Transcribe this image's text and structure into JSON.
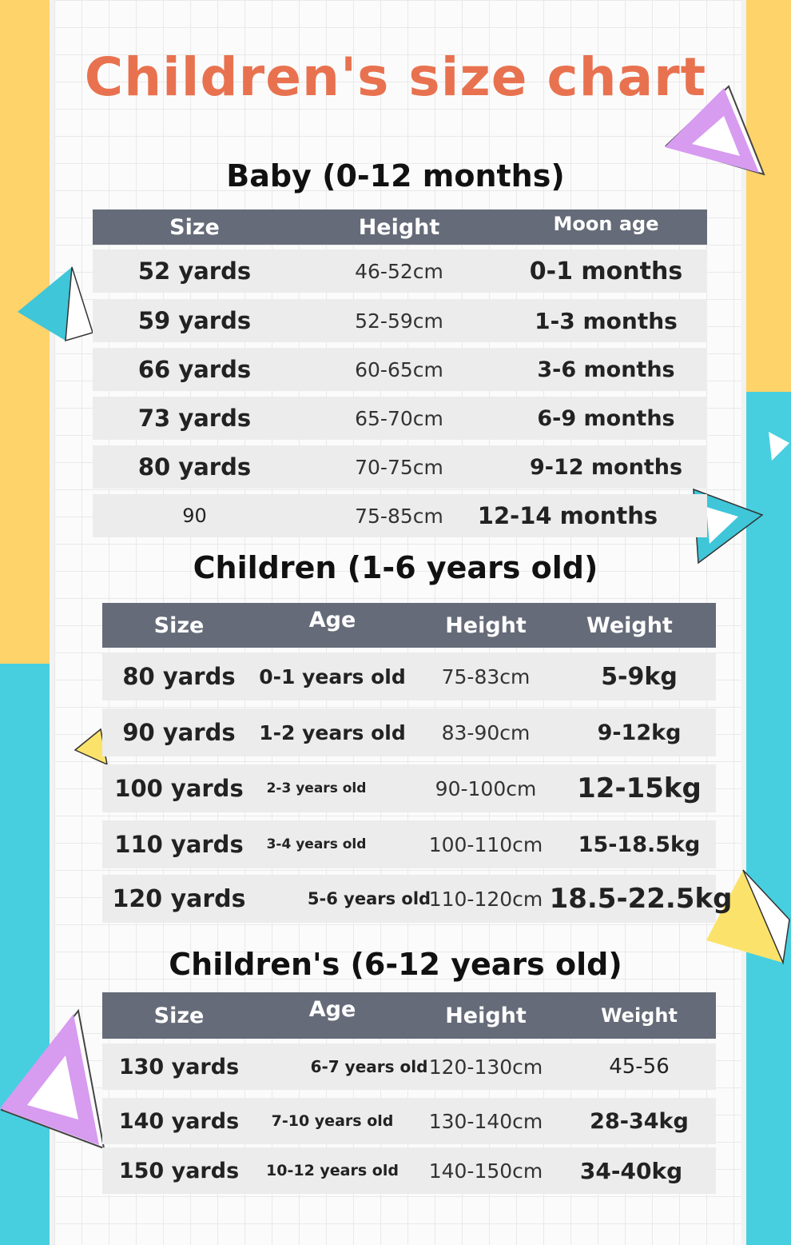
{
  "colors": {
    "title": "#e8724f",
    "header_bg": "#656b78",
    "row_bg": "#ececec",
    "yellow": "#fdd36a",
    "blue": "#47cfe0",
    "purple": "#d79bf0"
  },
  "title": "Children's size chart",
  "baby": {
    "heading": "Baby (0-12 months)",
    "headers": [
      "Size",
      "Height",
      "Moon age"
    ],
    "rows": [
      [
        "52 yards",
        "46-52cm",
        "0-1 months"
      ],
      [
        "59 yards",
        "52-59cm",
        "1-3 months"
      ],
      [
        "66 yards",
        "60-65cm",
        "3-6 months"
      ],
      [
        "73 yards",
        "65-70cm",
        "6-9 months"
      ],
      [
        "80 yards",
        "70-75cm",
        "9-12 months"
      ],
      [
        "90",
        "75-85cm",
        "12-14 months"
      ]
    ]
  },
  "kids": {
    "heading": "Children (1-6 years old)",
    "headers": [
      "Size",
      "Age",
      "Height",
      "Weight"
    ],
    "rows": [
      [
        "80 yards",
        "0-1 years old",
        "75-83cm",
        "5-9kg"
      ],
      [
        "90 yards",
        "1-2 years old",
        "83-90cm",
        "9-12kg"
      ],
      [
        "100 yards",
        "2-3 years old",
        "90-100cm",
        "12-15kg"
      ],
      [
        "110 yards",
        "3-4 years old",
        "100-110cm",
        "15-18.5kg"
      ],
      [
        "120 yards",
        "5-6 years old",
        "110-120cm",
        "18.5-22.5kg"
      ]
    ]
  },
  "older": {
    "heading": "Children's (6-12 years old)",
    "headers": [
      "Size",
      "Age",
      "Height",
      "Weight"
    ],
    "rows": [
      [
        "130 yards",
        "6-7 years old",
        "120-130cm",
        "45-56"
      ],
      [
        "140 yards",
        "7-10 years old",
        "130-140cm",
        "28-34kg"
      ],
      [
        "150 yards",
        "10-12 years old",
        "140-150cm",
        "34-40kg"
      ]
    ]
  }
}
